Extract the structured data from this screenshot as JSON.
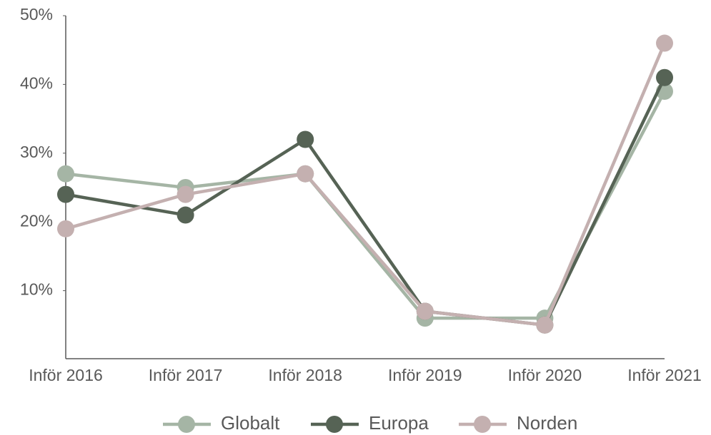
{
  "chart_data": {
    "type": "line",
    "categories": [
      "Inför 2016",
      "Inför 2017",
      "Inför 2018",
      "Inför 2019",
      "Inför 2020",
      "Inför 2021"
    ],
    "series": [
      {
        "name": "Globalt",
        "color": "#a5b5a5",
        "values": [
          27,
          25,
          27,
          6,
          6,
          39
        ]
      },
      {
        "name": "Europa",
        "color": "#566355",
        "values": [
          24,
          21,
          32,
          7,
          5,
          41
        ]
      },
      {
        "name": "Norden",
        "color": "#c4b0b0",
        "values": [
          19,
          24,
          27,
          7,
          5,
          46
        ]
      }
    ],
    "ylim": [
      0,
      50
    ],
    "yticks": [
      {
        "value": 10,
        "label": "10%"
      },
      {
        "value": 20,
        "label": "20%"
      },
      {
        "value": 30,
        "label": "30%"
      },
      {
        "value": 40,
        "label": "40%"
      },
      {
        "value": 50,
        "label": "50%"
      }
    ],
    "grid": false,
    "legend": "bottom"
  }
}
